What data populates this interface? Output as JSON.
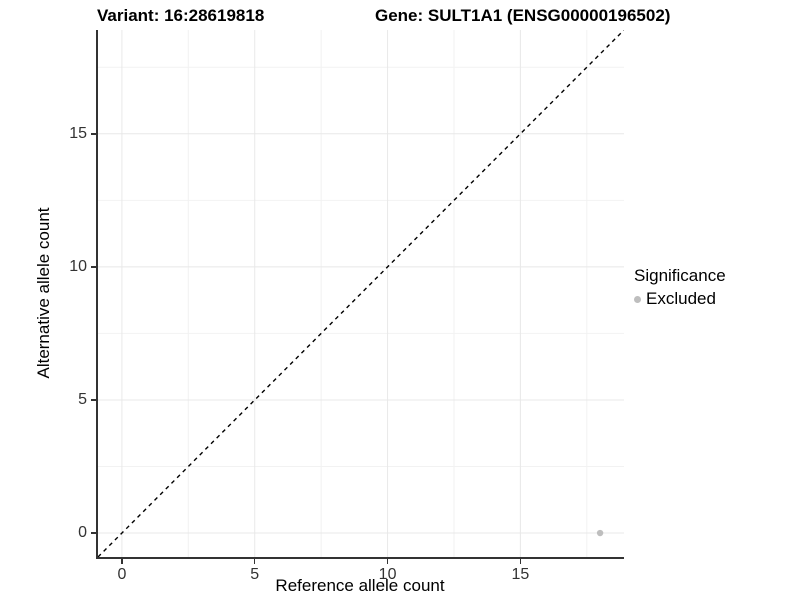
{
  "header": {
    "variant_title": "Variant: 16:28619818",
    "gene_title": "Gene: SULT1A1 (ENSG00000196502)"
  },
  "legend": {
    "title": "Significance",
    "items": [
      {
        "label": "Excluded",
        "color": "#bebebe"
      }
    ]
  },
  "chart_data": {
    "type": "scatter",
    "title": "Variant: 16:28619818 — Gene: SULT1A1 (ENSG00000196502)",
    "xlabel": "Reference allele count",
    "ylabel": "Alternative allele count",
    "xlim": [
      -0.9,
      18.9
    ],
    "ylim": [
      -0.9,
      18.9
    ],
    "x_major_ticks": [
      0,
      5,
      10,
      15
    ],
    "x_minor_ticks": [
      2.5,
      7.5,
      12.5,
      17.5
    ],
    "y_major_ticks": [
      0,
      5,
      10,
      15
    ],
    "y_minor_ticks": [
      2.5,
      7.5,
      12.5,
      17.5
    ],
    "grid": true,
    "legend_position": "right",
    "series": [
      {
        "name": "Excluded",
        "color": "#bebebe",
        "points": [
          {
            "x": 18,
            "y": 0
          }
        ]
      }
    ],
    "reference_line": {
      "equation": "y = x",
      "style": "dashed",
      "color": "#000000"
    }
  },
  "colors": {
    "background": "#ffffff",
    "grid_major": "#e8e8e8",
    "grid_minor": "#f2f2f2",
    "axis_line": "#333333",
    "tick_text": "#333333",
    "title_text": "#000000"
  }
}
